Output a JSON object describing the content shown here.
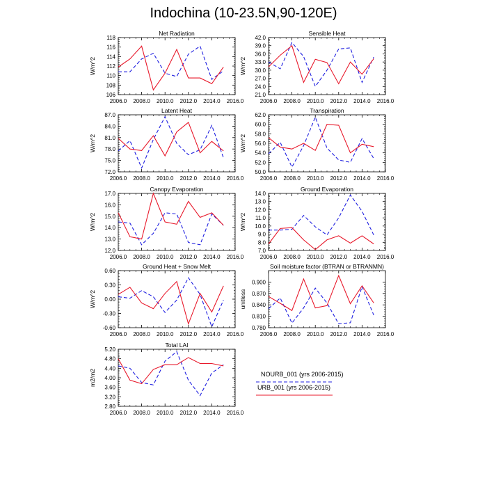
{
  "title": "Indochina (10-23.5N,90-120E)",
  "colors": {
    "nourb": "#1f1fe0",
    "urb": "#e8192b",
    "axis": "#000000"
  },
  "legend": {
    "nourb_label": "NOURB_001 (yrs 2006-2015)",
    "urb_label": "URB_001 (yrs 2006-2015)"
  },
  "chart_data": [
    {
      "type": "line",
      "title": "Net Radiation",
      "ylabel": "W/m^2",
      "x": [
        2006,
        2007,
        2008,
        2009,
        2010,
        2011,
        2012,
        2013,
        2014,
        2015
      ],
      "xlim": [
        2006,
        2016
      ],
      "xticks": [
        "2006.0",
        "2008.0",
        "2010.0",
        "2012.0",
        "2014.0",
        "2016.0"
      ],
      "ylim": [
        106,
        118
      ],
      "yticks": [
        "106",
        "108",
        "110",
        "112",
        "114",
        "116",
        "118"
      ],
      "series": [
        {
          "name": "NOURB_001 (yrs 2006-2015)",
          "style": "dashed",
          "values": [
            110.8,
            110.8,
            113.5,
            114.7,
            110.5,
            109.8,
            114.5,
            116.2,
            109.2,
            111.0
          ]
        },
        {
          "name": "URB_001 (yrs 2006-2015)",
          "style": "solid",
          "values": [
            111.8,
            113.5,
            116.2,
            107.0,
            110.5,
            115.5,
            109.5,
            109.5,
            108.3,
            111.8
          ]
        }
      ]
    },
    {
      "type": "line",
      "title": "Sensible Heat",
      "ylabel": "W/m^2",
      "x": [
        2006,
        2007,
        2008,
        2009,
        2010,
        2011,
        2012,
        2013,
        2014,
        2015
      ],
      "xlim": [
        2006,
        2016
      ],
      "xticks": [
        "2006.0",
        "2008.0",
        "2010.0",
        "2012.0",
        "2014.0",
        "2016.0"
      ],
      "ylim": [
        21,
        42
      ],
      "yticks": [
        "21.0",
        "24.0",
        "27.0",
        "30.0",
        "33.0",
        "36.0",
        "39.0",
        "42.0"
      ],
      "series": [
        {
          "name": "NOURB_001 (yrs 2006-2015)",
          "style": "dashed",
          "values": [
            33.0,
            30.5,
            40.2,
            35.0,
            24.0,
            30.0,
            37.8,
            38.2,
            25.5,
            34.8
          ]
        },
        {
          "name": "URB_001 (yrs 2006-2015)",
          "style": "solid",
          "values": [
            31.2,
            35.5,
            39.0,
            25.5,
            34.0,
            32.8,
            25.0,
            33.0,
            28.5,
            34.2
          ]
        }
      ]
    },
    {
      "type": "line",
      "title": "Latent Heat",
      "ylabel": "W/m^2",
      "x": [
        2006,
        2007,
        2008,
        2009,
        2010,
        2011,
        2012,
        2013,
        2014,
        2015
      ],
      "xlim": [
        2006,
        2016
      ],
      "xticks": [
        "2006.0",
        "2008.0",
        "2010.0",
        "2012.0",
        "2014.0",
        "2016.0"
      ],
      "ylim": [
        72,
        87
      ],
      "yticks": [
        "72.0",
        "75.0",
        "78.0",
        "81.0",
        "84.0",
        "87.0"
      ],
      "series": [
        {
          "name": "NOURB_001 (yrs 2006-2015)",
          "style": "dashed",
          "values": [
            77.5,
            80.2,
            73.0,
            80.5,
            86.5,
            79.5,
            76.5,
            77.8,
            84.2,
            75.7
          ]
        },
        {
          "name": "URB_001 (yrs 2006-2015)",
          "style": "solid",
          "values": [
            80.8,
            78.0,
            77.6,
            81.5,
            76.2,
            82.5,
            85.0,
            77.0,
            80.0,
            77.5
          ]
        }
      ]
    },
    {
      "type": "line",
      "title": "Transpiration",
      "ylabel": "W/m^2",
      "x": [
        2006,
        2007,
        2008,
        2009,
        2010,
        2011,
        2012,
        2013,
        2014,
        2015
      ],
      "xlim": [
        2006,
        2016
      ],
      "xticks": [
        "2006.0",
        "2008.0",
        "2010.0",
        "2012.0",
        "2014.0",
        "2016.0"
      ],
      "ylim": [
        50,
        62
      ],
      "yticks": [
        "50.0",
        "52.0",
        "54.0",
        "56.0",
        "58.0",
        "60.0",
        "62.0"
      ],
      "series": [
        {
          "name": "NOURB_001 (yrs 2006-2015)",
          "style": "dashed",
          "values": [
            53.8,
            56.2,
            51.0,
            55.5,
            61.5,
            55.0,
            52.5,
            52.0,
            57.0,
            52.8
          ]
        },
        {
          "name": "URB_001 (yrs 2006-2015)",
          "style": "solid",
          "values": [
            57.2,
            55.2,
            54.8,
            56.0,
            54.5,
            60.0,
            59.8,
            54.0,
            55.8,
            55.3
          ]
        }
      ]
    },
    {
      "type": "line",
      "title": "Canopy Evaporation",
      "ylabel": "W/m^2",
      "x": [
        2006,
        2007,
        2008,
        2009,
        2010,
        2011,
        2012,
        2013,
        2014,
        2015
      ],
      "xlim": [
        2006,
        2016
      ],
      "xticks": [
        "2006.0",
        "2008.0",
        "2010.0",
        "2012.0",
        "2014.0",
        "2016.0"
      ],
      "ylim": [
        12,
        17
      ],
      "yticks": [
        "12.0",
        "13.0",
        "14.0",
        "15.0",
        "16.0",
        "17.0"
      ],
      "series": [
        {
          "name": "NOURB_001 (yrs 2006-2015)",
          "style": "dashed",
          "values": [
            14.5,
            14.4,
            12.5,
            13.5,
            15.3,
            15.2,
            12.7,
            12.5,
            15.2,
            14.2
          ]
        },
        {
          "name": "URB_001 (yrs 2006-2015)",
          "style": "solid",
          "values": [
            15.3,
            13.2,
            13.0,
            17.0,
            14.5,
            14.3,
            16.3,
            14.9,
            15.3,
            14.2
          ]
        }
      ]
    },
    {
      "type": "line",
      "title": "Ground Evaporation",
      "ylabel": "W/m^2",
      "x": [
        2006,
        2007,
        2008,
        2009,
        2010,
        2011,
        2012,
        2013,
        2014,
        2015
      ],
      "xlim": [
        2006,
        2016
      ],
      "xticks": [
        "2006.0",
        "2008.0",
        "2010.0",
        "2012.0",
        "2014.0",
        "2016.0"
      ],
      "ylim": [
        7,
        14
      ],
      "yticks": [
        "7.0",
        "8.0",
        "9.0",
        "10.0",
        "11.0",
        "12.0",
        "13.0",
        "14.0"
      ],
      "series": [
        {
          "name": "NOURB_001 (yrs 2006-2015)",
          "style": "dashed",
          "values": [
            9.5,
            9.5,
            9.6,
            11.3,
            9.9,
            8.9,
            11.0,
            13.8,
            11.8,
            8.9
          ]
        },
        {
          "name": "URB_001 (yrs 2006-2015)",
          "style": "solid",
          "values": [
            7.8,
            9.7,
            9.8,
            8.3,
            7.1,
            8.3,
            8.8,
            7.9,
            8.8,
            7.8
          ]
        }
      ]
    },
    {
      "type": "line",
      "title": "Ground Heat + Snow Melt",
      "ylabel": "W/m^2",
      "x": [
        2006,
        2007,
        2008,
        2009,
        2010,
        2011,
        2012,
        2013,
        2014,
        2015
      ],
      "xlim": [
        2006,
        2016
      ],
      "xticks": [
        "2006.0",
        "2008.0",
        "2010.0",
        "2012.0",
        "2014.0",
        "2016.0"
      ],
      "ylim": [
        -0.6,
        0.6
      ],
      "yticks": [
        "-0.60",
        "-0.30",
        "0.00",
        "0.30",
        "0.60"
      ],
      "series": [
        {
          "name": "NOURB_001 (yrs 2006-2015)",
          "style": "dashed",
          "values": [
            0.05,
            0.02,
            0.18,
            0.05,
            -0.28,
            -0.02,
            0.45,
            0.1,
            -0.58,
            -0.02
          ]
        },
        {
          "name": "URB_001 (yrs 2006-2015)",
          "style": "solid",
          "values": [
            0.1,
            0.25,
            -0.08,
            -0.2,
            0.12,
            0.37,
            -0.52,
            0.12,
            -0.27,
            0.28
          ]
        }
      ]
    },
    {
      "type": "line",
      "title": "Soil moisture factor (BTRAN or BTRANMN)",
      "ylabel": "unitless",
      "x": [
        2006,
        2007,
        2008,
        2009,
        2010,
        2011,
        2012,
        2013,
        2014,
        2015
      ],
      "xlim": [
        2006,
        2016
      ],
      "xticks": [
        "2006.0",
        "2008.0",
        "2010.0",
        "2012.0",
        "2014.0",
        "2016.0"
      ],
      "ylim": [
        0.78,
        0.93
      ],
      "yticks": [
        "0.780",
        "0.810",
        "0.840",
        "0.870",
        "0.900"
      ],
      "series": [
        {
          "name": "NOURB_001 (yrs 2006-2015)",
          "style": "dashed",
          "values": [
            0.83,
            0.858,
            0.792,
            0.832,
            0.884,
            0.845,
            0.79,
            0.793,
            0.888,
            0.813
          ]
        },
        {
          "name": "URB_001 (yrs 2006-2015)",
          "style": "solid",
          "values": [
            0.862,
            0.844,
            0.825,
            0.908,
            0.832,
            0.838,
            0.917,
            0.843,
            0.89,
            0.845
          ]
        }
      ]
    },
    {
      "type": "line",
      "title": "Total LAI",
      "ylabel": "m2/m2",
      "x": [
        2006,
        2007,
        2008,
        2009,
        2010,
        2011,
        2012,
        2013,
        2014,
        2015
      ],
      "xlim": [
        2006,
        2016
      ],
      "xticks": [
        "2006.0",
        "2008.0",
        "2010.0",
        "2012.0",
        "2014.0",
        "2016.0"
      ],
      "ylim": [
        2.8,
        5.2
      ],
      "yticks": [
        "2.80",
        "3.20",
        "3.60",
        "4.00",
        "4.40",
        "4.80",
        "5.20"
      ],
      "series": [
        {
          "name": "NOURB_001 (yrs 2006-2015)",
          "style": "dashed",
          "values": [
            4.5,
            4.4,
            3.8,
            3.7,
            4.7,
            5.1,
            3.9,
            3.25,
            4.2,
            4.55
          ]
        },
        {
          "name": "URB_001 (yrs 2006-2015)",
          "style": "solid",
          "values": [
            4.8,
            3.9,
            3.75,
            4.35,
            4.55,
            4.55,
            4.85,
            4.6,
            4.6,
            4.5
          ]
        }
      ]
    }
  ]
}
